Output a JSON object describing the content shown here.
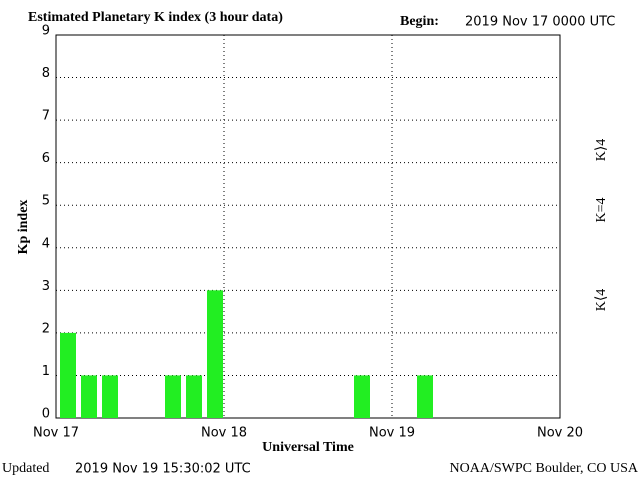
{
  "chart_data": {
    "type": "bar",
    "title": "Estimated Planetary K index (3 hour data)",
    "begin_label": "Begin:",
    "begin": "2019 Nov 17 0000 UTC",
    "ylabel": "Kp index",
    "xlabel": "Universal Time",
    "updated_label": "Updated",
    "updated": "2019 Nov 19 15:30:02 UTC",
    "credit": "NOAA/SWPC Boulder, CO USA",
    "x": [
      0,
      3,
      6,
      9,
      12,
      15,
      18,
      21,
      24,
      27,
      30,
      33,
      36,
      39,
      42,
      45,
      48,
      51,
      54,
      57,
      60
    ],
    "values": [
      2,
      1,
      1,
      0,
      0,
      1,
      1,
      3,
      0,
      0,
      0,
      0,
      0,
      0,
      1,
      0,
      0,
      1,
      0,
      0,
      0
    ],
    "color": "#22ee22",
    "xlim": [
      0,
      72
    ],
    "xticks": [
      {
        "value": 0,
        "label": "Nov 17"
      },
      {
        "value": 24,
        "label": "Nov 18"
      },
      {
        "value": 48,
        "label": "Nov 19"
      },
      {
        "value": 72,
        "label": "Nov 20"
      }
    ],
    "ylim": [
      0,
      9
    ],
    "yticks": [
      0,
      1,
      2,
      3,
      4,
      5,
      6,
      7,
      8,
      9
    ],
    "grid": true,
    "legend": [
      {
        "label": "K⟨4",
        "color": "#22ee22"
      },
      {
        "label": "K=4",
        "color": "#ffcc00"
      },
      {
        "label": "K⟩4",
        "color": "#ff3311"
      }
    ]
  }
}
